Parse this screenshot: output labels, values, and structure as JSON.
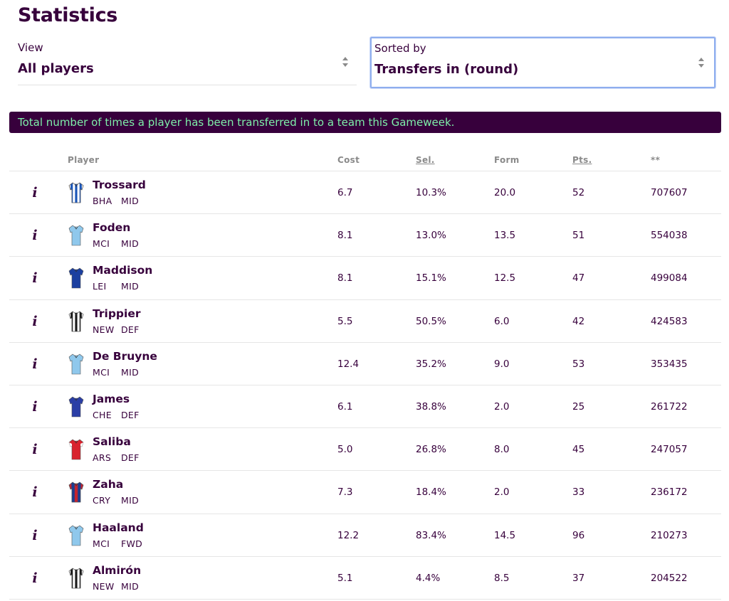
{
  "page": {
    "title": "Statistics"
  },
  "view_select": {
    "label": "View",
    "value": "All players"
  },
  "sort_select": {
    "label": "Sorted by",
    "value": "Transfers in (round)"
  },
  "banner": {
    "text": "Total number of times a player has been transferred in to a team this Gameweek."
  },
  "table": {
    "headers": {
      "player": "Player",
      "cost": "Cost",
      "selected": "Sel.",
      "form": "Form",
      "points": "Pts.",
      "value": "**"
    },
    "rows": [
      {
        "name": "Trossard",
        "team": "BHA",
        "pos": "MID",
        "cost": "6.7",
        "sel": "10.3%",
        "form": "20.0",
        "pts": "52",
        "val": "707607",
        "shirt": "bha"
      },
      {
        "name": "Foden",
        "team": "MCI",
        "pos": "MID",
        "cost": "8.1",
        "sel": "13.0%",
        "form": "13.5",
        "pts": "51",
        "val": "554038",
        "shirt": "mci"
      },
      {
        "name": "Maddison",
        "team": "LEI",
        "pos": "MID",
        "cost": "8.1",
        "sel": "15.1%",
        "form": "12.5",
        "pts": "47",
        "val": "499084",
        "shirt": "lei"
      },
      {
        "name": "Trippier",
        "team": "NEW",
        "pos": "DEF",
        "cost": "5.5",
        "sel": "50.5%",
        "form": "6.0",
        "pts": "42",
        "val": "424583",
        "shirt": "new"
      },
      {
        "name": "De Bruyne",
        "team": "MCI",
        "pos": "MID",
        "cost": "12.4",
        "sel": "35.2%",
        "form": "9.0",
        "pts": "53",
        "val": "353435",
        "shirt": "mci"
      },
      {
        "name": "James",
        "team": "CHE",
        "pos": "DEF",
        "cost": "6.1",
        "sel": "38.8%",
        "form": "2.0",
        "pts": "25",
        "val": "261722",
        "shirt": "che"
      },
      {
        "name": "Saliba",
        "team": "ARS",
        "pos": "DEF",
        "cost": "5.0",
        "sel": "26.8%",
        "form": "8.0",
        "pts": "45",
        "val": "247057",
        "shirt": "ars"
      },
      {
        "name": "Zaha",
        "team": "CRY",
        "pos": "MID",
        "cost": "7.3",
        "sel": "18.4%",
        "form": "2.0",
        "pts": "33",
        "val": "236172",
        "shirt": "cry"
      },
      {
        "name": "Haaland",
        "team": "MCI",
        "pos": "FWD",
        "cost": "12.2",
        "sel": "83.4%",
        "form": "14.5",
        "pts": "96",
        "val": "210273",
        "shirt": "mci"
      },
      {
        "name": "Almirón",
        "team": "NEW",
        "pos": "MID",
        "cost": "5.1",
        "sel": "4.4%",
        "form": "8.5",
        "pts": "37",
        "val": "204522",
        "shirt": "new"
      }
    ]
  },
  "colors": {
    "primary": "#37003c",
    "banner_text": "#7ef0a9",
    "focus_border": "#8faeee"
  }
}
